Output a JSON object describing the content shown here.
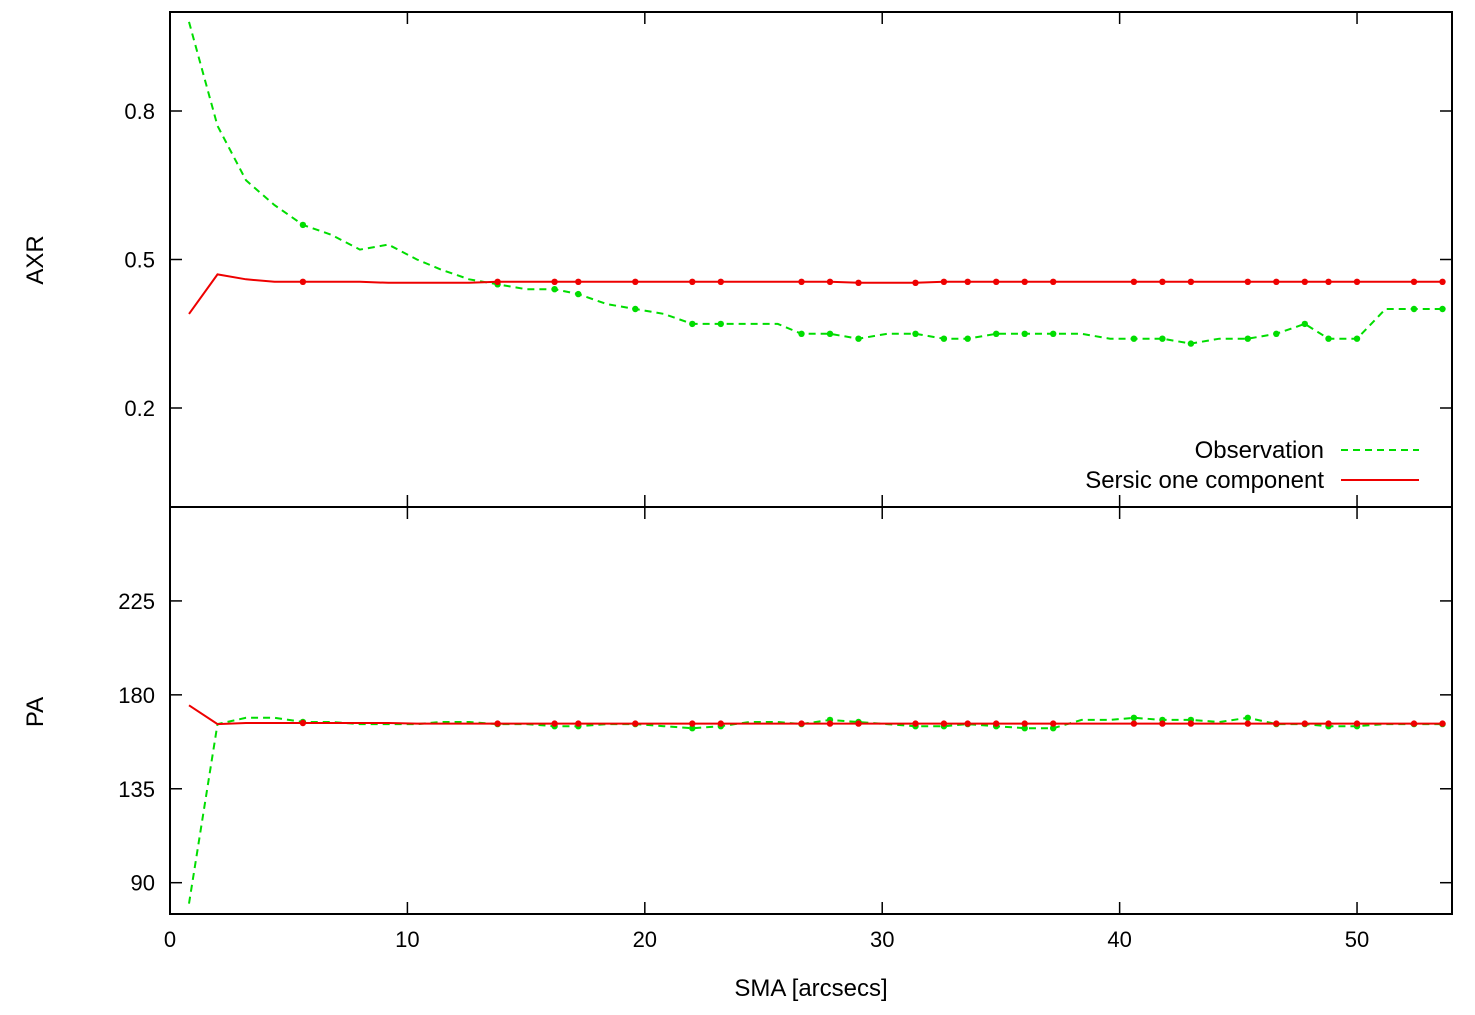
{
  "chart_data": [
    {
      "type": "line",
      "panel": "top",
      "ylabel": "AXR",
      "xlabel": "",
      "xlim": [
        0,
        54
      ],
      "ylim": [
        0,
        1.0
      ],
      "xticks": [
        0,
        10,
        20,
        30,
        40,
        50
      ],
      "yticks": [
        0.2,
        0.5,
        0.8
      ],
      "ytick_labels": [
        "0.2",
        "0.5",
        "0.8"
      ],
      "legend_position": "bottom-right",
      "series": [
        {
          "name": "Observation",
          "color": "#00dd00",
          "style": "dashed",
          "x": [
            0.8,
            2.0,
            3.2,
            4.4,
            5.6,
            6.8,
            8.0,
            9.2,
            10.4,
            11.4,
            12.6,
            13.8,
            15.0,
            16.2,
            17.2,
            18.4,
            19.6,
            20.8,
            22.0,
            23.2,
            24.4,
            25.6,
            26.6,
            27.8,
            29.0,
            30.2,
            31.4,
            32.6,
            33.6,
            34.8,
            36.0,
            37.2,
            38.4,
            39.6,
            40.6,
            41.8,
            43.0,
            44.2,
            45.4,
            46.6,
            47.8,
            48.8,
            50.0,
            51.2,
            52.4,
            53.6
          ],
          "y": [
            0.98,
            0.77,
            0.66,
            0.61,
            0.57,
            0.55,
            0.52,
            0.53,
            0.5,
            0.48,
            0.46,
            0.45,
            0.44,
            0.44,
            0.43,
            0.41,
            0.4,
            0.39,
            0.37,
            0.37,
            0.37,
            0.37,
            0.35,
            0.35,
            0.34,
            0.35,
            0.35,
            0.34,
            0.34,
            0.35,
            0.35,
            0.35,
            0.35,
            0.34,
            0.34,
            0.34,
            0.33,
            0.34,
            0.34,
            0.35,
            0.37,
            0.34,
            0.34,
            0.4,
            0.4,
            0.4
          ]
        },
        {
          "name": "Sersic one component",
          "color": "#ee0000",
          "style": "solid",
          "x": [
            0.8,
            2.0,
            3.2,
            4.4,
            5.6,
            6.8,
            8.0,
            9.2,
            10.4,
            11.4,
            12.6,
            13.8,
            15.0,
            16.2,
            17.2,
            18.4,
            19.6,
            20.8,
            22.0,
            23.2,
            24.4,
            25.6,
            26.6,
            27.8,
            29.0,
            30.2,
            31.4,
            32.6,
            33.6,
            34.8,
            36.0,
            37.2,
            38.4,
            39.6,
            40.6,
            41.8,
            43.0,
            44.2,
            45.4,
            46.6,
            47.8,
            48.8,
            50.0,
            51.2,
            52.4,
            53.6
          ],
          "y": [
            0.39,
            0.47,
            0.46,
            0.455,
            0.455,
            0.455,
            0.455,
            0.453,
            0.453,
            0.453,
            0.453,
            0.455,
            0.455,
            0.455,
            0.455,
            0.455,
            0.455,
            0.455,
            0.455,
            0.455,
            0.455,
            0.455,
            0.455,
            0.455,
            0.453,
            0.453,
            0.453,
            0.455,
            0.455,
            0.455,
            0.455,
            0.455,
            0.455,
            0.455,
            0.455,
            0.455,
            0.455,
            0.455,
            0.455,
            0.455,
            0.455,
            0.455,
            0.455,
            0.455,
            0.455,
            0.455
          ]
        }
      ]
    },
    {
      "type": "line",
      "panel": "bottom",
      "ylabel": "PA",
      "xlabel": "SMA [arcsecs]",
      "xlim": [
        0,
        54
      ],
      "ylim": [
        75,
        270
      ],
      "xticks": [
        0,
        10,
        20,
        30,
        40,
        50
      ],
      "xtick_labels": [
        "0",
        "10",
        "20",
        "30",
        "40",
        "50"
      ],
      "yticks": [
        90,
        135,
        180,
        225
      ],
      "ytick_labels": [
        "90",
        "135",
        "180",
        "225"
      ],
      "series": [
        {
          "name": "Observation",
          "color": "#00dd00",
          "style": "dashed",
          "x": [
            0.8,
            2.0,
            3.2,
            4.4,
            5.6,
            6.8,
            8.0,
            9.2,
            10.4,
            11.4,
            12.6,
            13.8,
            15.0,
            16.2,
            17.2,
            18.4,
            19.6,
            20.8,
            22.0,
            23.2,
            24.4,
            25.6,
            26.6,
            27.8,
            29.0,
            30.2,
            31.4,
            32.6,
            33.6,
            34.8,
            36.0,
            37.2,
            38.4,
            39.6,
            40.6,
            41.8,
            43.0,
            44.2,
            45.4,
            46.6,
            47.8,
            48.8,
            50.0,
            51.2,
            52.4,
            53.6
          ],
          "y": [
            80,
            166,
            169,
            169,
            167,
            167,
            166,
            166,
            166,
            167,
            167,
            166,
            166,
            165,
            165,
            166,
            166,
            165,
            164,
            165,
            167,
            167,
            166,
            168,
            167,
            166,
            165,
            165,
            166,
            165,
            164,
            164,
            168,
            168,
            169,
            168,
            168,
            167,
            169,
            166,
            166,
            165,
            165,
            166,
            166,
            166
          ]
        },
        {
          "name": "Sersic one component",
          "color": "#ee0000",
          "style": "solid",
          "x": [
            0.8,
            2.0,
            3.2,
            4.4,
            5.6,
            6.8,
            8.0,
            9.2,
            10.4,
            11.4,
            12.6,
            13.8,
            15.0,
            16.2,
            17.2,
            18.4,
            19.6,
            20.8,
            22.0,
            23.2,
            24.4,
            25.6,
            26.6,
            27.8,
            29.0,
            30.2,
            31.4,
            32.6,
            33.6,
            34.8,
            36.0,
            37.2,
            38.4,
            39.6,
            40.6,
            41.8,
            43.0,
            44.2,
            45.4,
            46.6,
            47.8,
            48.8,
            50.0,
            51.2,
            52.4,
            53.6
          ],
          "y": [
            175,
            166,
            166.5,
            166.5,
            166.5,
            166.5,
            166.5,
            166.5,
            166.2,
            166.2,
            166.2,
            166.2,
            166.2,
            166.2,
            166.2,
            166.2,
            166.2,
            166.2,
            166.2,
            166.2,
            166.2,
            166.2,
            166.2,
            166.2,
            166.2,
            166.2,
            166.2,
            166.2,
            166.2,
            166.2,
            166.2,
            166.2,
            166.2,
            166.2,
            166.2,
            166.2,
            166.2,
            166.2,
            166.2,
            166.2,
            166.2,
            166.2,
            166.2,
            166.2,
            166.2,
            166.2
          ]
        }
      ]
    }
  ],
  "legend": {
    "observation_label": "Observation",
    "sersic_label": "Sersic one component"
  },
  "labels": {
    "top_ylabel": "AXR",
    "bottom_ylabel": "PA",
    "xlabel": "SMA [arcsecs]"
  },
  "marker_indices": [
    4,
    11,
    13,
    14,
    16,
    18,
    19,
    22,
    23,
    24,
    26,
    27,
    28,
    29,
    30,
    31,
    34,
    35,
    36,
    38,
    39,
    40,
    41,
    42,
    44,
    45
  ]
}
